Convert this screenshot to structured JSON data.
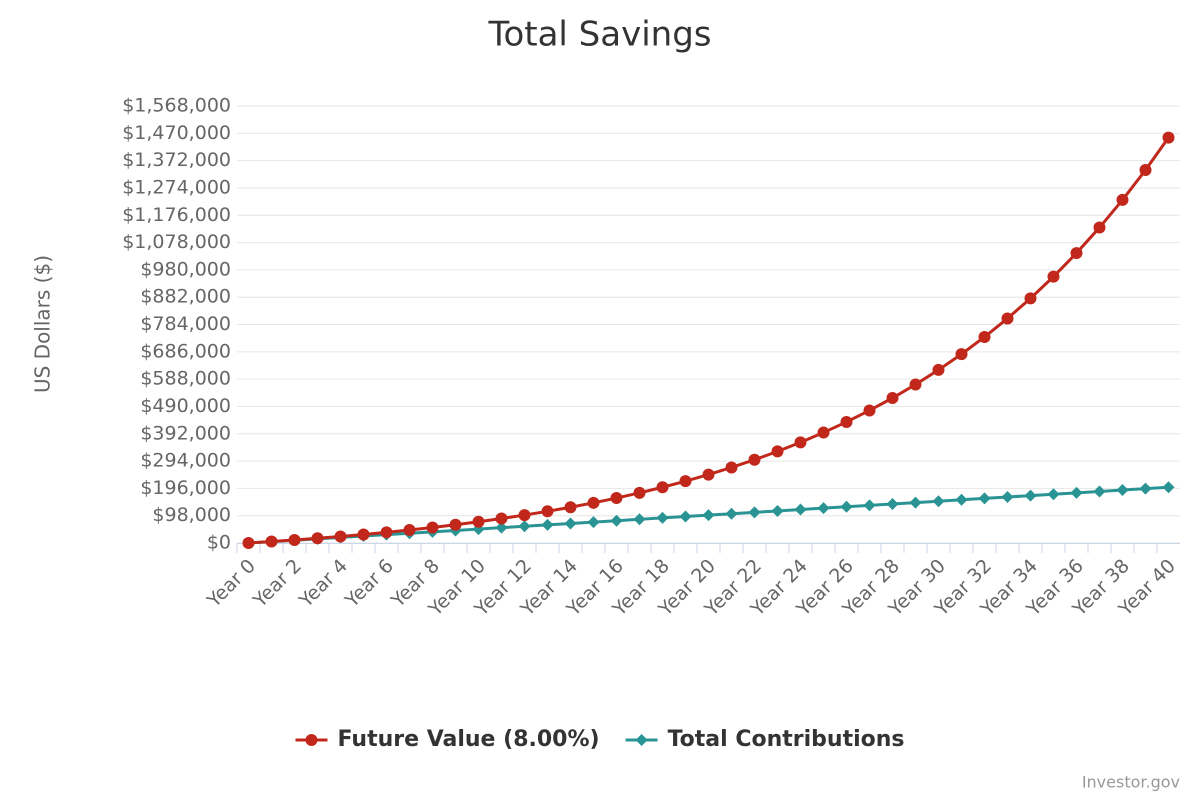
{
  "chart_data": {
    "type": "line",
    "title": "Total Savings",
    "y_label": "US Dollars ($)",
    "credits": "Investor.gov",
    "categories": [
      "Year 0",
      null,
      "Year 2",
      null,
      "Year 4",
      null,
      "Year 6",
      null,
      "Year 8",
      null,
      "Year 10",
      null,
      "Year 12",
      null,
      "Year 14",
      null,
      "Year 16",
      null,
      "Year 18",
      null,
      "Year 20",
      null,
      "Year 22",
      null,
      "Year 24",
      null,
      "Year 26",
      null,
      "Year 28",
      null,
      "Year 30",
      null,
      "Year 32",
      null,
      "Year 34",
      null,
      "Year 36",
      null,
      "Year 38",
      null,
      "Year 40"
    ],
    "series": [
      {
        "name": "Future Value (8.00%)",
        "color": "#c1281b",
        "marker": "circle",
        "values": [
          0,
          5188,
          10806,
          16890,
          23479,
          30616,
          38344,
          46714,
          55779,
          65596,
          76228,
          87743,
          100213,
          113718,
          128344,
          144184,
          161339,
          179918,
          200038,
          221829,
          245428,
          270986,
          298666,
          328642,
          361107,
          396267,
          434344,
          475582,
          520243,
          568611,
          620993,
          677723,
          739162,
          805699,
          877760,
          955801,
          1040321,
          1131855,
          1230986,
          1338345,
          1454616
        ]
      },
      {
        "name": "Total Contributions",
        "color": "#2a9494",
        "marker": "diamond",
        "values": [
          0,
          5000,
          10000,
          15000,
          20000,
          25000,
          30000,
          35000,
          40000,
          45000,
          50000,
          55000,
          60000,
          65000,
          70000,
          75000,
          80000,
          85000,
          90000,
          95000,
          100000,
          105000,
          110000,
          115000,
          120000,
          125000,
          130000,
          135000,
          140000,
          145000,
          150000,
          155000,
          160000,
          165000,
          170000,
          175000,
          180000,
          185000,
          190000,
          195000,
          200000
        ]
      }
    ],
    "ylim": [
      0,
      1568000
    ],
    "yticks": [
      {
        "value": 0,
        "label": "$0"
      },
      {
        "value": 98000,
        "label": "$98,000"
      },
      {
        "value": 196000,
        "label": "$196,000"
      },
      {
        "value": 294000,
        "label": "$294,000"
      },
      {
        "value": 392000,
        "label": "$392,000"
      },
      {
        "value": 490000,
        "label": "$490,000"
      },
      {
        "value": 588000,
        "label": "$588,000"
      },
      {
        "value": 686000,
        "label": "$686,000"
      },
      {
        "value": 784000,
        "label": "$784,000"
      },
      {
        "value": 882000,
        "label": "$882,000"
      },
      {
        "value": 980000,
        "label": "$980,000"
      },
      {
        "value": 1078000,
        "label": "$1,078,000"
      },
      {
        "value": 1176000,
        "label": "$1,176,000"
      },
      {
        "value": 1274000,
        "label": "$1,274,000"
      },
      {
        "value": 1372000,
        "label": "$1,372,000"
      },
      {
        "value": 1470000,
        "label": "$1,470,000"
      },
      {
        "value": 1568000,
        "label": "$1,568,000"
      }
    ],
    "grid": true,
    "legend": "bottom"
  }
}
